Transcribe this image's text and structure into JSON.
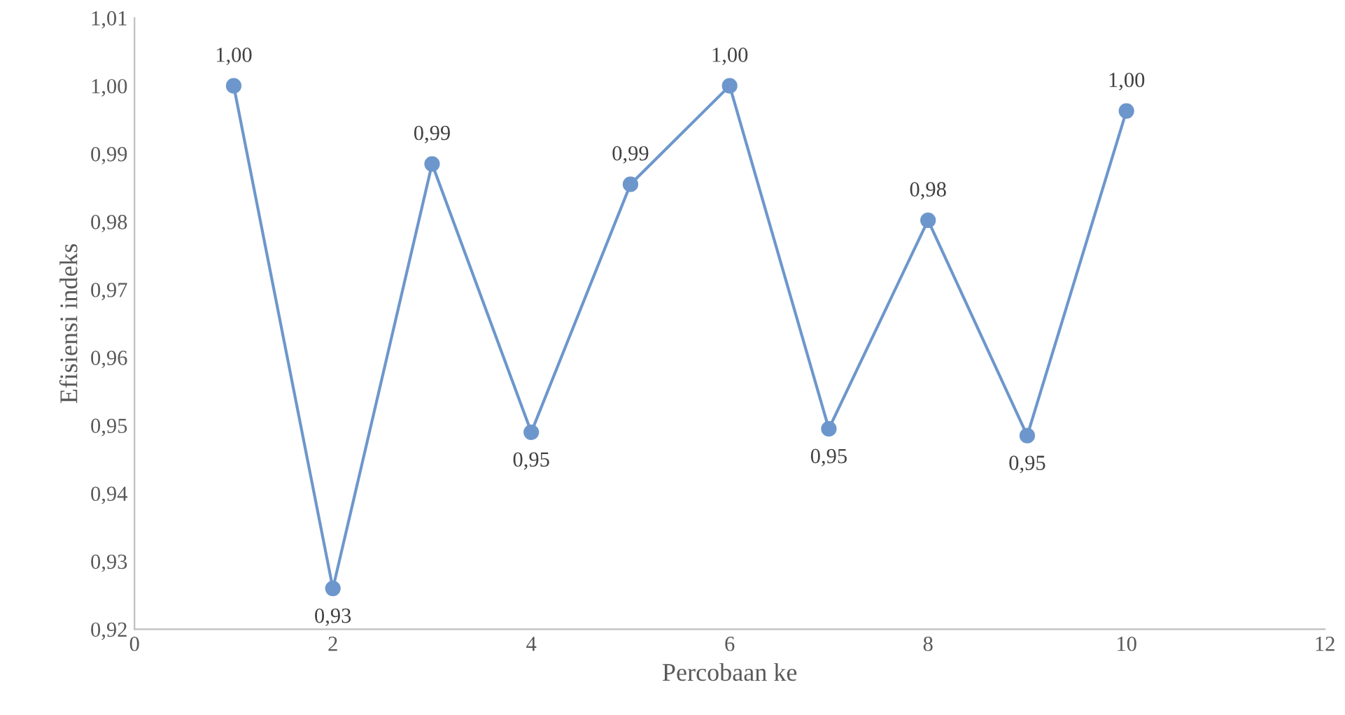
{
  "chart_data": {
    "type": "line",
    "xlabel": "Percobaan ke",
    "ylabel": "Efisiensi indeks",
    "x": [
      1,
      2,
      3,
      4,
      5,
      6,
      7,
      8,
      9,
      10
    ],
    "series": [
      {
        "color": "#6d97cc",
        "values": [
          1.0,
          0.926,
          0.9885,
          0.949,
          0.9855,
          1.0,
          0.9495,
          0.9802,
          0.9485,
          0.9963
        ],
        "value_labels": [
          "1,00",
          "0,93",
          "0,99",
          "0,95",
          "0,99",
          "1,00",
          "0,95",
          "0,98",
          "0,95",
          "1,00"
        ]
      }
    ],
    "xlim": [
      0,
      12
    ],
    "xticks": [
      0,
      2,
      4,
      6,
      8,
      10,
      12
    ],
    "ylim": [
      0.92,
      1.01
    ],
    "yticks": [
      {
        "value": 0.92,
        "label": "0,92"
      },
      {
        "value": 0.93,
        "label": "0,93"
      },
      {
        "value": 0.94,
        "label": "0,94"
      },
      {
        "value": 0.95,
        "label": "0,95"
      },
      {
        "value": 0.96,
        "label": "0,96"
      },
      {
        "value": 0.97,
        "label": "0,97"
      },
      {
        "value": 0.98,
        "label": "0,98"
      },
      {
        "value": 0.99,
        "label": "0,99"
      },
      {
        "value": 1.0,
        "label": "1,00"
      },
      {
        "value": 1.01,
        "label": "1,01"
      }
    ],
    "marker": "circle",
    "line_style": "solid",
    "grid": false,
    "legend": false
  }
}
